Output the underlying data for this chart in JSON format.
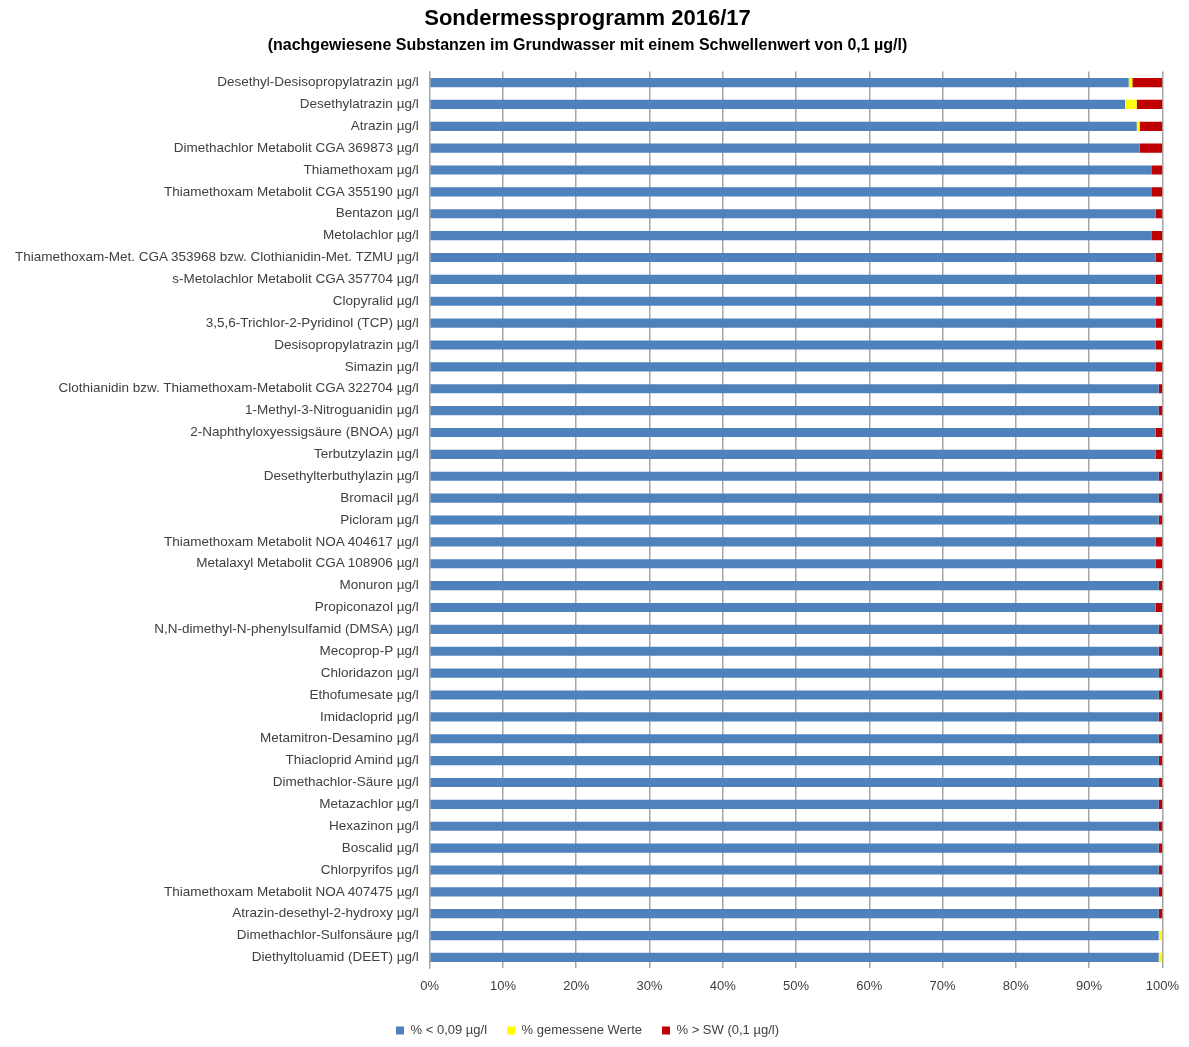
{
  "chart_data": {
    "type": "bar",
    "orientation": "horizontal",
    "stacked": true,
    "title": "Sondermessprogramm 2016/17",
    "subtitle": "(nachgewiesene Substanzen im Grundwasser mit einem Schwellenwert von 0,1 µg/l)",
    "categories": [
      "Desethyl-Desisopropylatrazin µg/l",
      "Desethylatrazin µg/l",
      "Atrazin µg/l",
      "Dimethachlor Metabolit CGA 369873 µg/l",
      "Thiamethoxam µg/l",
      "Thiamethoxam Metabolit CGA 355190 µg/l",
      "Bentazon µg/l",
      "Metolachlor µg/l",
      "Thiamethoxam-Met. CGA 353968 bzw. Clothianidin-Met. TZMU µg/l",
      "s-Metolachlor Metabolit CGA 357704 µg/l",
      "Clopyralid µg/l",
      "3,5,6-Trichlor-2-Pyridinol (TCP) µg/l",
      "Desisopropylatrazin µg/l",
      "Simazin µg/l",
      "Clothianidin bzw. Thiamethoxam-Metabolit CGA 322704 µg/l",
      "1-Methyl-3-Nitroguanidin µg/l",
      "2-Naphthyloxyessigsäure (BNOA) µg/l",
      "Terbutzylazin µg/l",
      "Desethylterbuthylazin µg/l",
      "Bromacil µg/l",
      "Picloram µg/l",
      "Thiamethoxam Metabolit NOA 404617 µg/l",
      "Metalaxyl Metabolit CGA 108906 µg/l",
      "Monuron µg/l",
      "Propiconazol µg/l",
      "N,N-dimethyl-N-phenylsulfamid (DMSA) µg/l",
      "Mecoprop-P µg/l",
      "Chloridazon µg/l",
      "Ethofumesate µg/l",
      "Imidacloprid µg/l",
      "Metamitron-Desamino µg/l",
      "Thiacloprid Amind µg/l",
      "Dimethachlor-Säure µg/l",
      "Metazachlor µg/l",
      "Hexazinon µg/l",
      "Boscalid µg/l",
      "Chlorpyrifos µg/l",
      "Thiamethoxam Metabolit NOA 407475 µg/l",
      "Atrazin-desethyl-2-hydroxy µg/l",
      "Dimethachlor-Sulfonsäure µg/l",
      "Diethyltoluamid (DEET) µg/l"
    ],
    "series": [
      {
        "name": "% < 0,09 µg/l",
        "color": "#4f81bd",
        "values": [
          95.4,
          94.9,
          96.5,
          96.9,
          98.5,
          98.5,
          99.1,
          98.5,
          99.1,
          99.1,
          99.1,
          99.1,
          99.1,
          99.1,
          99.5,
          99.5,
          99.1,
          99.1,
          99.5,
          99.5,
          99.5,
          99.1,
          99.1,
          99.5,
          99.1,
          99.5,
          99.5,
          99.5,
          99.5,
          99.5,
          99.5,
          99.5,
          99.5,
          99.5,
          99.5,
          99.5,
          99.5,
          99.5,
          99.5,
          99.5,
          99.5
        ]
      },
      {
        "name": "% gemessene Werte",
        "color": "#ffff00",
        "values": [
          0.5,
          1.6,
          0.4,
          null,
          null,
          null,
          null,
          null,
          null,
          null,
          null,
          null,
          null,
          null,
          null,
          null,
          null,
          null,
          null,
          null,
          null,
          null,
          null,
          null,
          null,
          null,
          null,
          null,
          null,
          null,
          null,
          null,
          null,
          null,
          null,
          null,
          null,
          null,
          null,
          0.5,
          0.5
        ]
      },
      {
        "name": "% > SW (0,1 µg/l)",
        "color": "#c00000",
        "values": [
          4.1,
          3.5,
          3.1,
          3.1,
          1.5,
          1.5,
          0.9,
          1.5,
          0.9,
          0.9,
          0.9,
          0.9,
          0.9,
          0.9,
          0.5,
          0.5,
          0.9,
          0.9,
          0.5,
          0.5,
          0.5,
          0.9,
          0.9,
          0.5,
          0.9,
          0.5,
          0.5,
          0.5,
          0.5,
          0.5,
          0.5,
          0.5,
          0.5,
          0.5,
          0.5,
          0.5,
          0.5,
          0.5,
          0.5,
          null,
          null
        ]
      }
    ],
    "xlim": [
      0,
      100
    ],
    "xticks": [
      {
        "value": 0,
        "label": "0%"
      },
      {
        "value": 10,
        "label": "10%"
      },
      {
        "value": 20,
        "label": "20%"
      },
      {
        "value": 30,
        "label": "30%"
      },
      {
        "value": 40,
        "label": "40%"
      },
      {
        "value": 50,
        "label": "50%"
      },
      {
        "value": 60,
        "label": "60%"
      },
      {
        "value": 70,
        "label": "70%"
      },
      {
        "value": 80,
        "label": "80%"
      },
      {
        "value": 90,
        "label": "90%"
      },
      {
        "value": 100,
        "label": "100%"
      }
    ],
    "grid": "x",
    "legend": "bottom"
  }
}
